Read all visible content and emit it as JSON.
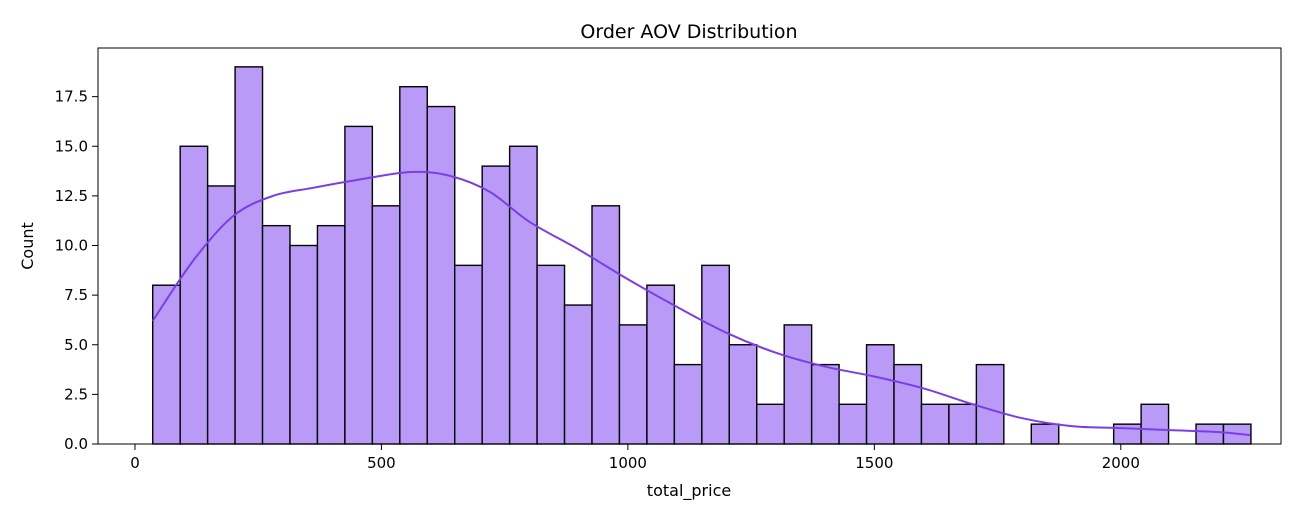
{
  "chart_data": {
    "type": "bar",
    "title": "Order AOV Distribution",
    "xlabel": "total_price",
    "ylabel": "Count",
    "xlim": [
      -75,
      2325
    ],
    "ylim": [
      0,
      19.95
    ],
    "x_ticks": [
      0,
      500,
      1000,
      1500,
      2000
    ],
    "x_tick_labels": [
      "0",
      "500",
      "1000",
      "1500",
      "2000"
    ],
    "y_ticks": [
      0,
      2.5,
      5,
      7.5,
      10,
      12.5,
      15,
      17.5
    ],
    "y_tick_labels": [
      "0.0",
      "2.5",
      "5.0",
      "7.5",
      "10.0",
      "12.5",
      "15.0",
      "17.5"
    ],
    "grid": false,
    "bin_start": 36,
    "bin_width": 55.7,
    "counts": [
      8,
      15,
      13,
      19,
      11,
      10,
      11,
      16,
      12,
      18,
      17,
      9,
      14,
      15,
      9,
      7,
      12,
      6,
      8,
      4,
      9,
      5,
      2,
      6,
      4,
      2,
      5,
      4,
      2,
      2,
      4,
      0,
      1,
      0,
      0,
      1,
      2,
      0,
      1,
      1
    ],
    "kde": {
      "x": [
        36,
        120,
        200,
        280,
        360,
        450,
        560,
        640,
        720,
        800,
        900,
        1000,
        1100,
        1200,
        1300,
        1400,
        1500,
        1600,
        1700,
        1800,
        1900,
        2000,
        2100,
        2200,
        2262
      ],
      "y": [
        6.2,
        9.3,
        11.5,
        12.5,
        12.9,
        13.3,
        13.7,
        13.5,
        12.7,
        11.2,
        9.8,
        8.3,
        6.9,
        5.6,
        4.6,
        3.9,
        3.4,
        2.8,
        2.0,
        1.3,
        0.9,
        0.8,
        0.7,
        0.6,
        0.45
      ]
    },
    "bar_color": "#b99bf7",
    "bar_edge": "#000000",
    "line_color": "#7b3ee6"
  }
}
